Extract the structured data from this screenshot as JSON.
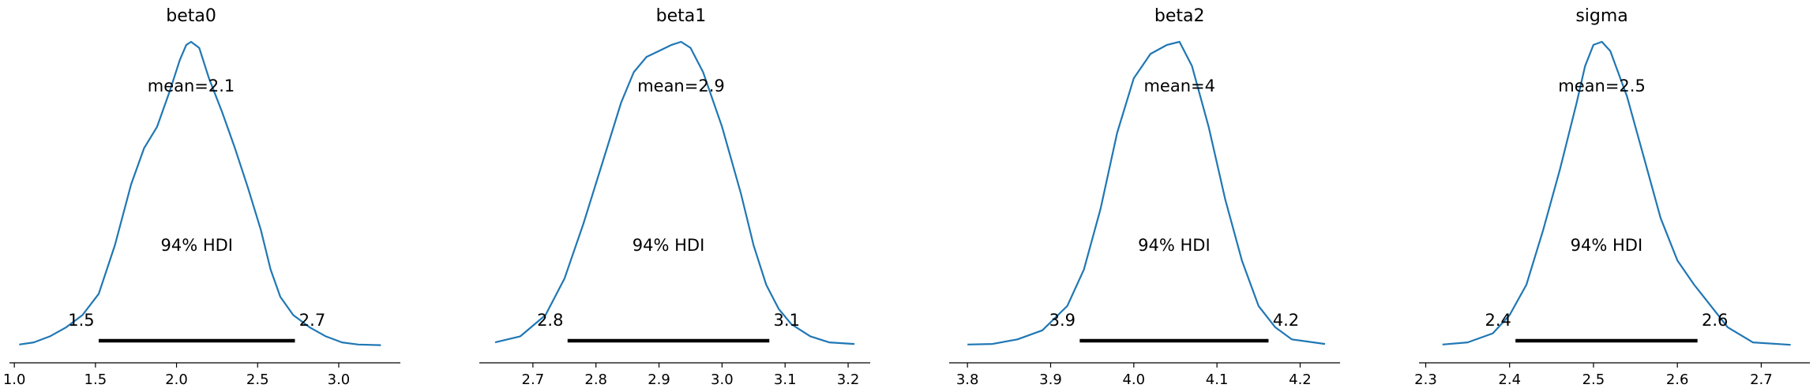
{
  "chart_data": [
    {
      "type": "line",
      "title": "beta0",
      "mean_label": "mean=2.1",
      "hdi_label": "94% HDI",
      "hdi": [
        1.52,
        2.73
      ],
      "hdi_low_label": "1.5",
      "hdi_high_label": "2.7",
      "xlim": [
        0.97,
        3.38
      ],
      "xticks": [
        1.0,
        1.5,
        2.0,
        2.5,
        3.0
      ],
      "xtick_labels": [
        "1.0",
        "1.5",
        "2.0",
        "2.5",
        "3.0"
      ],
      "density": {
        "x": [
          1.03,
          1.12,
          1.22,
          1.32,
          1.42,
          1.52,
          1.62,
          1.72,
          1.8,
          1.88,
          1.96,
          2.02,
          2.06,
          2.09,
          2.14,
          2.2,
          2.28,
          2.36,
          2.44,
          2.52,
          2.58,
          2.64,
          2.72,
          2.82,
          2.92,
          3.02,
          3.12,
          3.26
        ],
        "y": [
          0.003,
          0.01,
          0.03,
          0.06,
          0.1,
          0.17,
          0.33,
          0.53,
          0.65,
          0.72,
          0.84,
          0.94,
          0.99,
          1.0,
          0.98,
          0.88,
          0.77,
          0.65,
          0.52,
          0.38,
          0.25,
          0.16,
          0.1,
          0.06,
          0.03,
          0.01,
          0.003,
          0.001
        ]
      }
    },
    {
      "type": "line",
      "title": "beta1",
      "mean_label": "mean=2.9",
      "hdi_label": "94% HDI",
      "hdi": [
        2.755,
        3.075
      ],
      "hdi_low_label": "2.8",
      "hdi_high_label": "3.1",
      "xlim": [
        2.615,
        3.235
      ],
      "xticks": [
        2.7,
        2.8,
        2.9,
        3.0,
        3.1,
        3.2
      ],
      "xtick_labels": [
        "2.7",
        "2.8",
        "2.9",
        "3.0",
        "3.1",
        "3.2"
      ],
      "density": {
        "x": [
          2.64,
          2.68,
          2.72,
          2.75,
          2.78,
          2.81,
          2.84,
          2.86,
          2.88,
          2.9,
          2.92,
          2.935,
          2.95,
          2.97,
          3.0,
          3.03,
          3.05,
          3.07,
          3.09,
          3.11,
          3.14,
          3.17,
          3.21
        ],
        "y": [
          0.01,
          0.03,
          0.1,
          0.22,
          0.4,
          0.6,
          0.8,
          0.9,
          0.95,
          0.97,
          0.99,
          1.0,
          0.98,
          0.9,
          0.72,
          0.5,
          0.33,
          0.2,
          0.12,
          0.07,
          0.03,
          0.01,
          0.005
        ]
      }
    },
    {
      "type": "line",
      "title": "beta2",
      "mean_label": "mean=4",
      "hdi_label": "94% HDI",
      "hdi": [
        3.935,
        4.162
      ],
      "hdi_low_label": "3.9",
      "hdi_high_label": "4.2",
      "xlim": [
        3.778,
        4.248
      ],
      "xticks": [
        3.8,
        3.9,
        4.0,
        4.1,
        4.2
      ],
      "xtick_labels": [
        "3.8",
        "3.9",
        "4.0",
        "4.1",
        "4.2"
      ],
      "density": {
        "x": [
          3.8,
          3.83,
          3.86,
          3.89,
          3.92,
          3.94,
          3.96,
          3.98,
          4.0,
          4.02,
          4.04,
          4.055,
          4.07,
          4.09,
          4.11,
          4.13,
          4.15,
          4.17,
          4.19,
          4.23
        ],
        "y": [
          0.003,
          0.005,
          0.02,
          0.05,
          0.13,
          0.25,
          0.45,
          0.7,
          0.88,
          0.96,
          0.99,
          1.0,
          0.92,
          0.72,
          0.48,
          0.28,
          0.13,
          0.06,
          0.02,
          0.005
        ]
      }
    },
    {
      "type": "line",
      "title": "sigma",
      "mean_label": "mean=2.5",
      "hdi_label": "94% HDI",
      "hdi": [
        2.407,
        2.624
      ],
      "hdi_low_label": "2.4",
      "hdi_high_label": "2.6",
      "xlim": [
        2.292,
        2.758
      ],
      "xticks": [
        2.3,
        2.4,
        2.5,
        2.6,
        2.7
      ],
      "xtick_labels": [
        "2.3",
        "2.4",
        "2.5",
        "2.6",
        "2.7"
      ],
      "density": {
        "x": [
          2.32,
          2.35,
          2.38,
          2.4,
          2.42,
          2.44,
          2.46,
          2.48,
          2.49,
          2.5,
          2.51,
          2.52,
          2.54,
          2.56,
          2.58,
          2.6,
          2.62,
          2.64,
          2.66,
          2.69,
          2.735
        ],
        "y": [
          0.003,
          0.01,
          0.04,
          0.1,
          0.2,
          0.38,
          0.58,
          0.8,
          0.92,
          0.99,
          1.0,
          0.97,
          0.82,
          0.62,
          0.42,
          0.28,
          0.2,
          0.13,
          0.06,
          0.01,
          0.002
        ]
      }
    }
  ]
}
